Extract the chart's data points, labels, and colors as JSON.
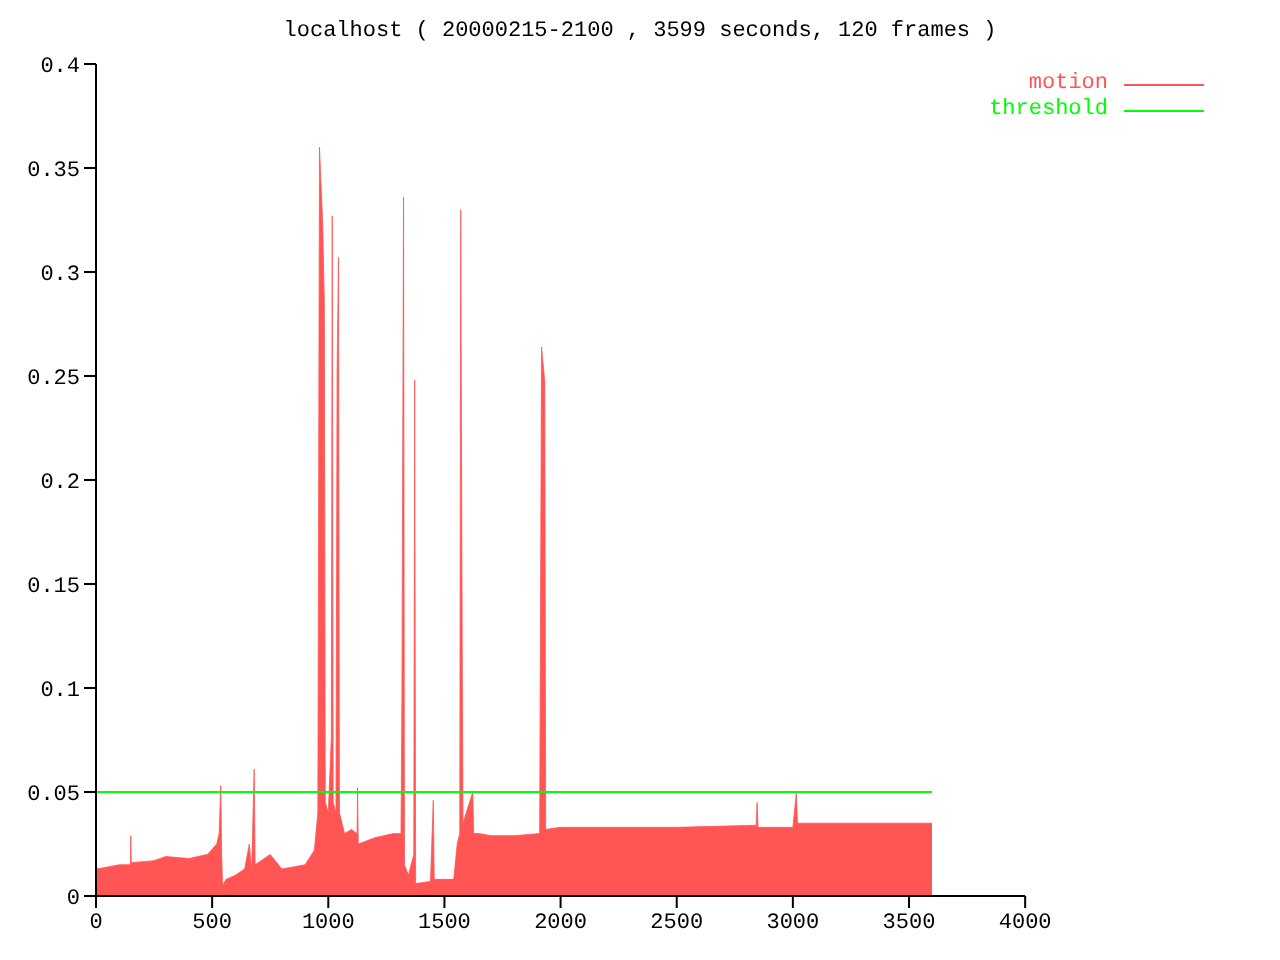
{
  "chart_data": {
    "type": "area",
    "title": "localhost ( 20000215-2100 , 3599 seconds, 120 frames )",
    "xlim": [
      0,
      4000
    ],
    "xticks": [
      0,
      500,
      1000,
      1500,
      2000,
      2500,
      3000,
      3500,
      4000
    ],
    "ylim": [
      0,
      0.4
    ],
    "yticks": [
      0,
      0.05,
      0.1,
      0.15,
      0.2,
      0.25,
      0.3,
      0.35,
      0.4
    ],
    "grid": false,
    "legend": "top right",
    "series": [
      {
        "name": "motion",
        "color": "#ff5555",
        "x": [
          0,
          5,
          100,
          148,
          150,
          152,
          250,
          300,
          400,
          480,
          520,
          530,
          537,
          541,
          545,
          560,
          600,
          640,
          660,
          670,
          681,
          685,
          750,
          800,
          900,
          940,
          955,
          962,
          976,
          983,
          987,
          1000,
          1013,
          1017,
          1021,
          1033,
          1038,
          1044,
          1048,
          1070,
          1100,
          1124,
          1126,
          1129,
          1200,
          1280,
          1313,
          1317,
          1324,
          1328,
          1345,
          1368,
          1372,
          1376,
          1440,
          1452,
          1456,
          1540,
          1555,
          1566,
          1570,
          1577,
          1580,
          1622,
          1626,
          1650,
          1700,
          1800,
          1910,
          1918,
          1932,
          1936,
          2000,
          2500,
          2842,
          2846,
          2850,
          3000,
          3015,
          3020,
          3599
        ],
        "values": [
          0.017,
          0.013,
          0.015,
          0.015,
          0.029,
          0.016,
          0.017,
          0.019,
          0.018,
          0.02,
          0.025,
          0.03,
          0.053,
          0.02,
          0.005,
          0.008,
          0.01,
          0.013,
          0.025,
          0.012,
          0.061,
          0.015,
          0.02,
          0.013,
          0.015,
          0.022,
          0.04,
          0.36,
          0.323,
          0.285,
          0.045,
          0.04,
          0.076,
          0.327,
          0.045,
          0.04,
          0.252,
          0.307,
          0.04,
          0.03,
          0.032,
          0.03,
          0.052,
          0.025,
          0.028,
          0.03,
          0.03,
          0.095,
          0.336,
          0.015,
          0.01,
          0.02,
          0.248,
          0.006,
          0.007,
          0.046,
          0.008,
          0.008,
          0.025,
          0.03,
          0.33,
          0.106,
          0.035,
          0.05,
          0.03,
          0.03,
          0.029,
          0.029,
          0.03,
          0.264,
          0.247,
          0.032,
          0.033,
          0.033,
          0.034,
          0.045,
          0.033,
          0.033,
          0.05,
          0.035,
          0.035
        ]
      },
      {
        "name": "threshold",
        "type": "line",
        "color": "#00ff00",
        "x": [
          0,
          3599
        ],
        "values": [
          0.05,
          0.05
        ]
      }
    ]
  }
}
